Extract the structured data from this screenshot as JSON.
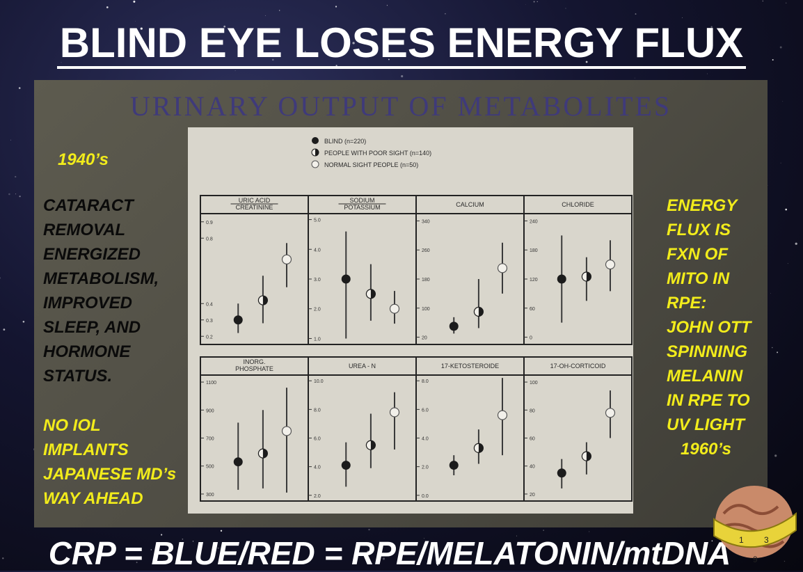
{
  "title": "BLIND EYE LOSES ENERGY FLUX",
  "slide_heading": "URINARY OUTPUT OF METABOLITES",
  "left_year": "1940’s",
  "left_lines": [
    "CATARACT",
    "REMOVAL",
    "ENERGIZED",
    "METABOLISM,",
    "IMPROVED",
    "SLEEP, AND",
    "HORMONE",
    "STATUS."
  ],
  "left_lines_yellow": [
    "NO IOL",
    "IMPLANTS",
    "JAPANESE MD’s",
    "WAY AHEAD"
  ],
  "right_lines": [
    "ENERGY",
    "FLUX IS",
    "FXN OF",
    "MITO IN",
    "RPE:",
    "JOHN OTT",
    "SPINNING",
    "MELANIN",
    "IN RPE TO",
    "UV LIGHT",
    "1960’s"
  ],
  "footer": "CRP = BLUE/RED = RPE/MELATONIN/mtDNA",
  "icon": "brain-tape-measure-icon",
  "colors": {
    "yellow": "#f2ec1b",
    "heading_blue": "#3f3a7a"
  },
  "chart_data": {
    "type": "scatter",
    "legend": [
      {
        "name": "BLIND (n=220)",
        "marker": "filled"
      },
      {
        "name": "PEOPLE WITH POOR SIGHT (n=140)",
        "marker": "half"
      },
      {
        "name": "NORMAL SIGHT PEOPLE (n=50)",
        "marker": "open"
      }
    ],
    "legend_position": "top-center",
    "panels": [
      {
        "label": [
          "URIC ACID",
          "CREATININE"
        ],
        "ticks": [
          "0.9",
          "0.8",
          "0.4",
          "0.3",
          "0.2"
        ],
        "ylim": [
          0.15,
          0.95
        ],
        "points": [
          {
            "mean": 0.3,
            "low": 0.22,
            "high": 0.4
          },
          {
            "mean": 0.42,
            "low": 0.28,
            "high": 0.57
          },
          {
            "mean": 0.67,
            "low": 0.5,
            "high": 0.77
          }
        ]
      },
      {
        "label": [
          "SODIUM",
          "POTASSIUM"
        ],
        "ticks": [
          "5.0",
          "4.0",
          "3.0",
          "2.0",
          "1.0"
        ],
        "ylim": [
          0.8,
          5.2
        ],
        "points": [
          {
            "mean": 3.0,
            "low": 1.0,
            "high": 4.6
          },
          {
            "mean": 2.5,
            "low": 1.6,
            "high": 3.5
          },
          {
            "mean": 2.0,
            "low": 1.5,
            "high": 2.6
          }
        ]
      },
      {
        "label": [
          "CALCIUM"
        ],
        "ticks": [
          "340",
          "260",
          "180",
          "100",
          "20"
        ],
        "ylim": [
          0,
          360
        ],
        "points": [
          {
            "mean": 50,
            "low": 30,
            "high": 75
          },
          {
            "mean": 90,
            "low": 45,
            "high": 180
          },
          {
            "mean": 210,
            "low": 140,
            "high": 280
          }
        ]
      },
      {
        "label": [
          "CHLORIDE"
        ],
        "ticks": [
          "240",
          "180",
          "120",
          "60",
          "0"
        ],
        "ylim": [
          -15,
          255
        ],
        "points": [
          {
            "mean": 120,
            "low": 30,
            "high": 210
          },
          {
            "mean": 125,
            "low": 75,
            "high": 165
          },
          {
            "mean": 150,
            "low": 95,
            "high": 200
          }
        ]
      },
      {
        "label": [
          "INORG.",
          "PHOSPHATE"
        ],
        "ticks": [
          "1100",
          "900",
          "700",
          "500",
          "300"
        ],
        "ylim": [
          250,
          1150
        ],
        "points": [
          {
            "mean": 530,
            "low": 330,
            "high": 810
          },
          {
            "mean": 590,
            "low": 340,
            "high": 900
          },
          {
            "mean": 750,
            "low": 310,
            "high": 1060
          }
        ]
      },
      {
        "label": [
          "UREA - N"
        ],
        "ticks": [
          "10.0",
          "8.0",
          "6.0",
          "4.0",
          "2.0"
        ],
        "ylim": [
          1.6,
          10.4
        ],
        "points": [
          {
            "mean": 4.1,
            "low": 2.6,
            "high": 5.7
          },
          {
            "mean": 5.5,
            "low": 3.9,
            "high": 7.7
          },
          {
            "mean": 7.8,
            "low": 5.2,
            "high": 9.2
          }
        ]
      },
      {
        "label": [
          "17-KETOSTEROIDE"
        ],
        "ticks": [
          "8.0",
          "6.0",
          "4.0",
          "2.0",
          "0.0"
        ],
        "ylim": [
          -0.4,
          8.4
        ],
        "points": [
          {
            "mean": 2.1,
            "low": 1.4,
            "high": 2.8
          },
          {
            "mean": 3.3,
            "low": 2.2,
            "high": 4.6
          },
          {
            "mean": 5.6,
            "low": 2.8,
            "high": 8.2
          }
        ]
      },
      {
        "label": [
          "17-OH-CORTICOID"
        ],
        "ticks": [
          "100",
          "80",
          "60",
          "40",
          "20"
        ],
        "ylim": [
          15,
          105
        ],
        "points": [
          {
            "mean": 35,
            "low": 24,
            "high": 45
          },
          {
            "mean": 47,
            "low": 34,
            "high": 57
          },
          {
            "mean": 78,
            "low": 60,
            "high": 94
          }
        ]
      }
    ]
  }
}
